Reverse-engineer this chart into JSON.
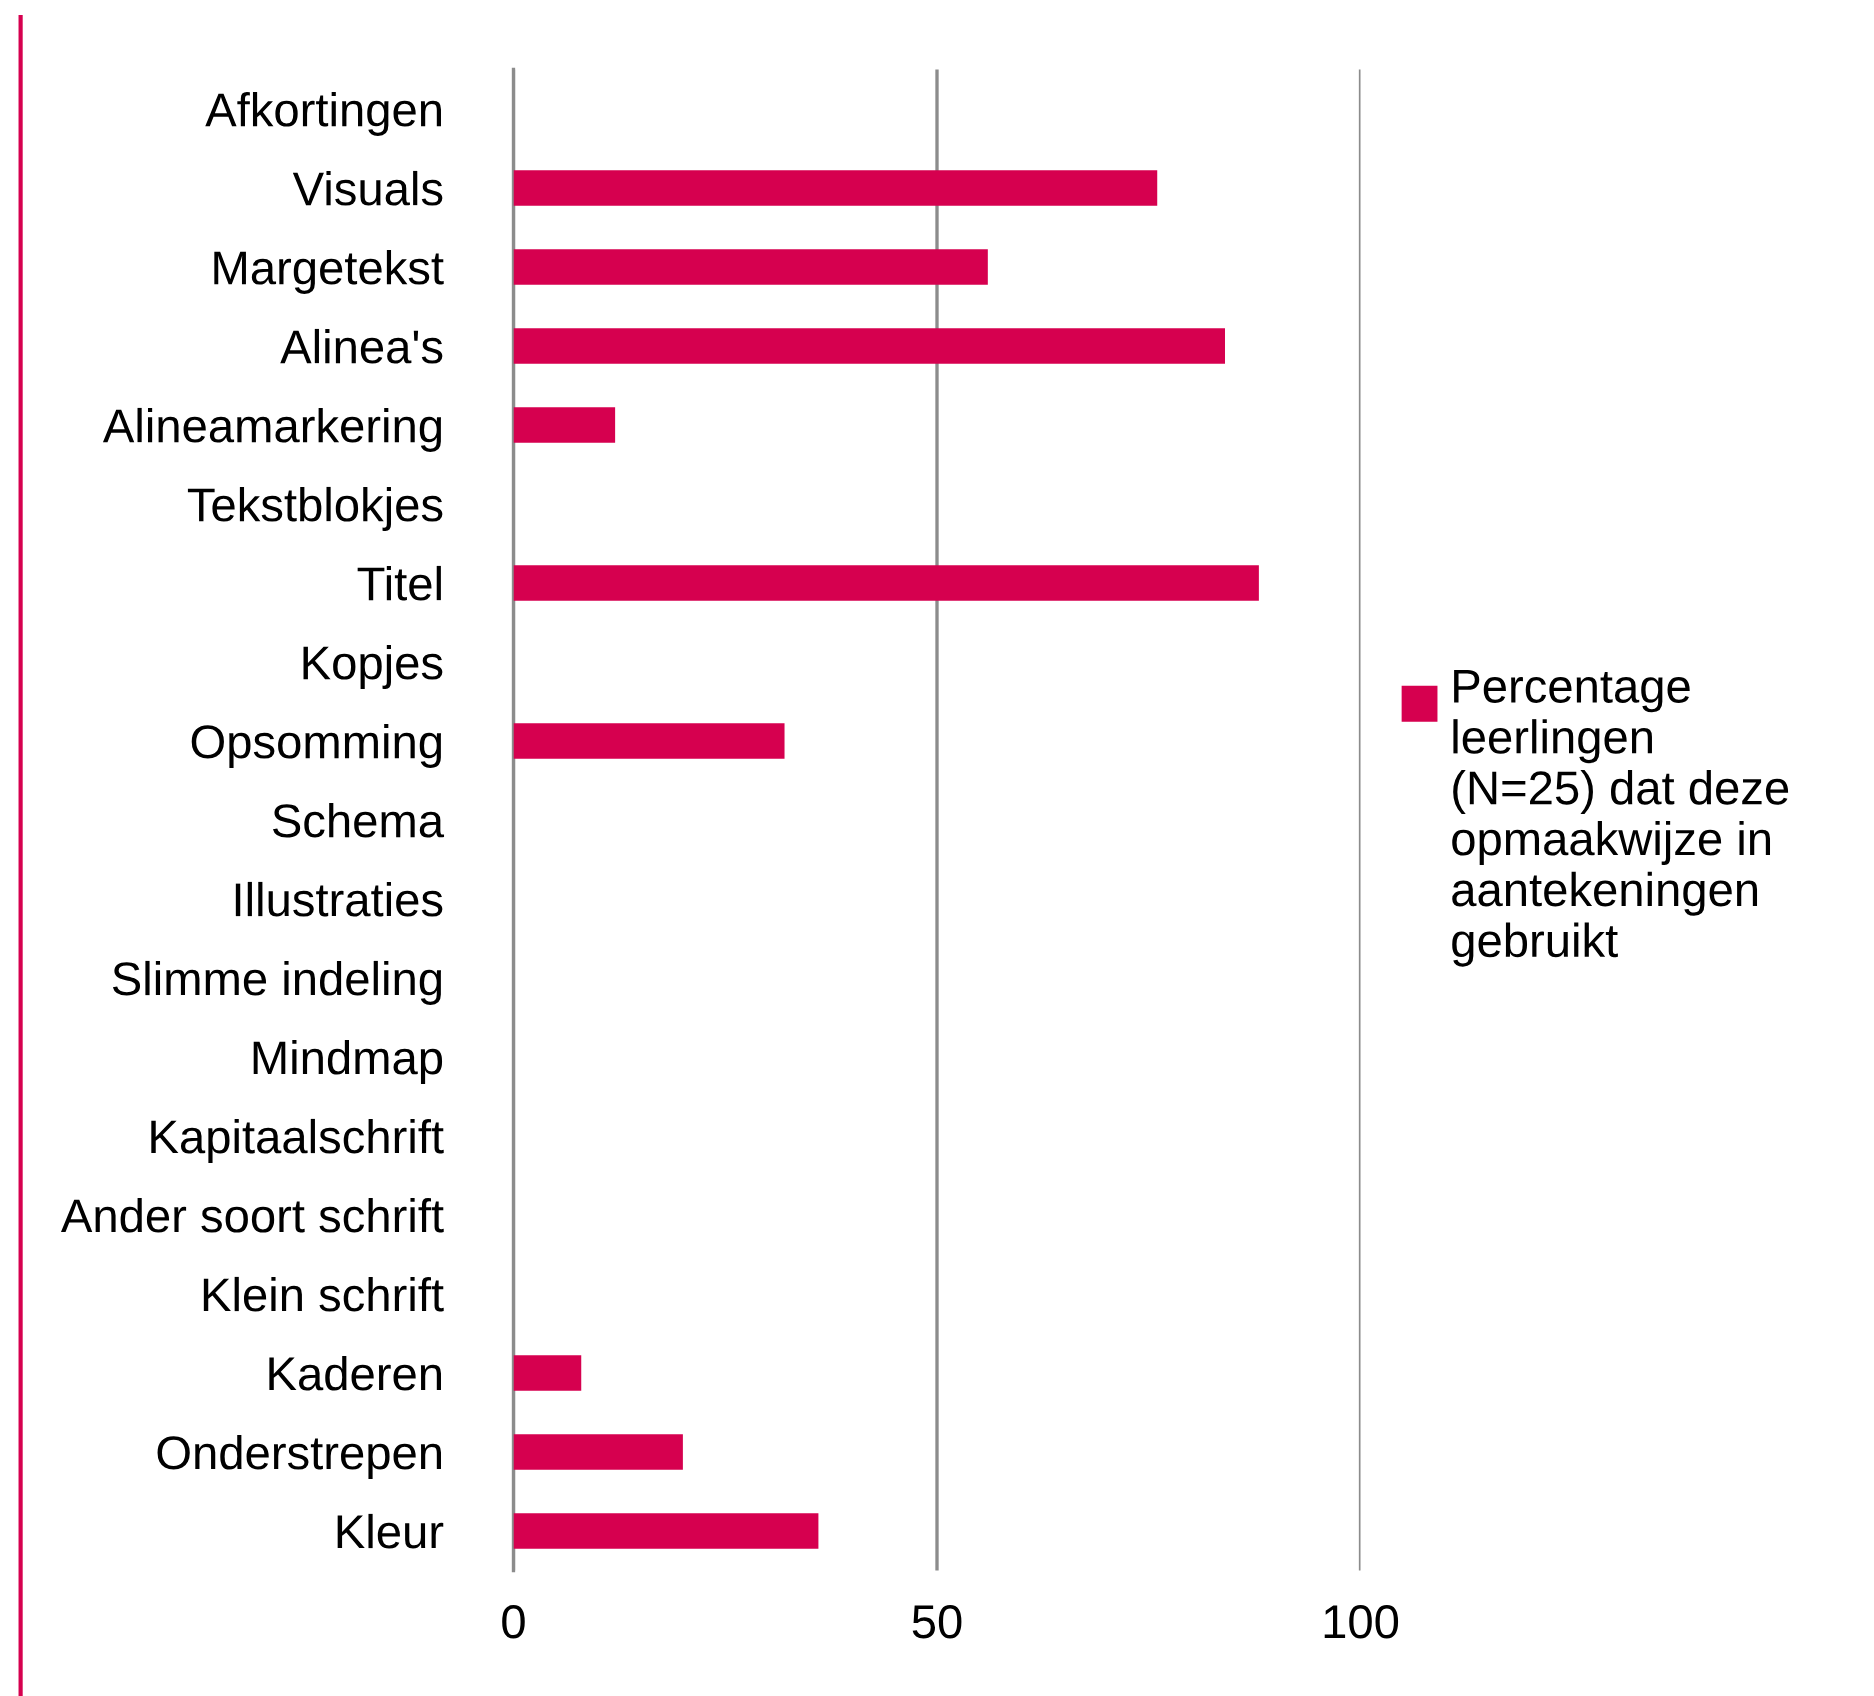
{
  "chart_data": {
    "type": "bar",
    "orientation": "horizontal",
    "categories": [
      "Afkortingen",
      "Visuals",
      "Margetekst",
      "Alinea's",
      "Alineamarkering",
      "Tekstblokjes",
      "Titel",
      "Kopjes",
      "Opsomming",
      "Schema",
      "Illustraties",
      "Slimme indeling",
      "Mindmap",
      "Kapitaalschrift",
      "Ander soort schrift",
      "Klein schrift",
      "Kaderen",
      "Onderstrepen",
      "Kleur"
    ],
    "series": [
      {
        "name": "Percentage leerlingen (N=25) dat deze opmaakwijze in aantekeningen gebruikt",
        "color": "#d6004f",
        "values": [
          0,
          76,
          56,
          84,
          12,
          0,
          88,
          0,
          32,
          0,
          0,
          0,
          0,
          0,
          0,
          0,
          8,
          20,
          36
        ]
      }
    ],
    "xlim": [
      0,
      100
    ],
    "xticks": [
      0,
      50,
      100
    ],
    "grid": "x",
    "legend": "right"
  }
}
